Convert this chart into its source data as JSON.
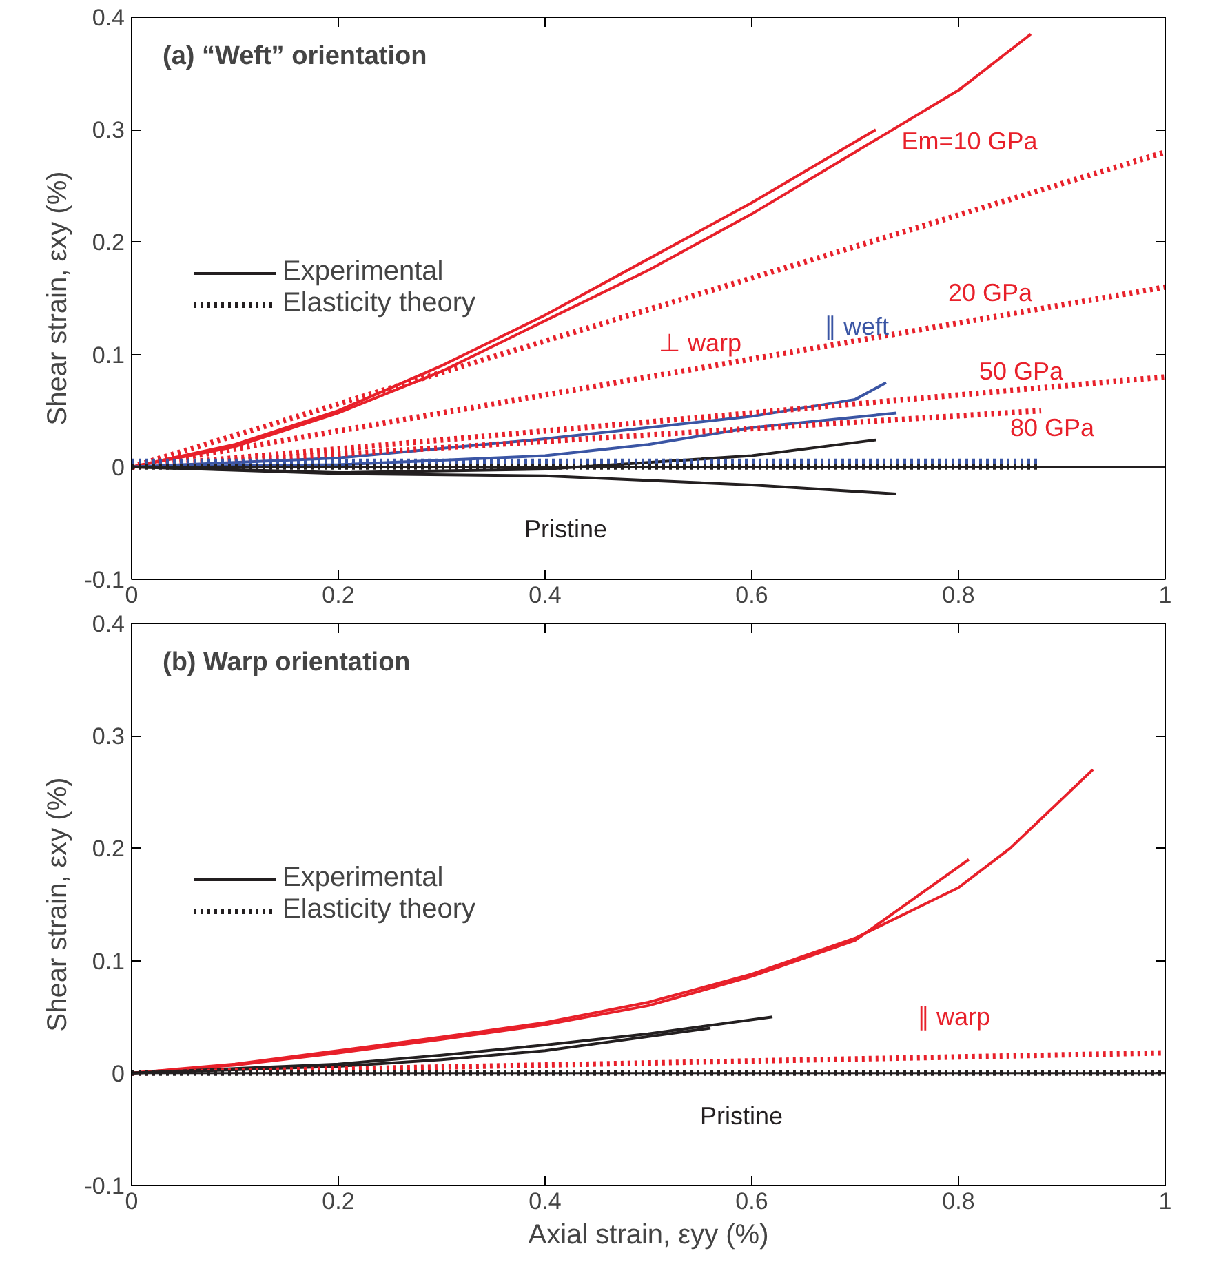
{
  "chart_data": [
    {
      "type": "line",
      "title": "(a) “Weft” orientation",
      "ylabel": "Shear strain, εxy (%)",
      "xlim": [
        0,
        1.0
      ],
      "ylim": [
        -0.1,
        0.4
      ],
      "xticks": [
        0,
        0.2,
        0.4,
        0.6,
        0.8,
        1.0
      ],
      "yticks": [
        -0.1,
        0,
        0.1,
        0.2,
        0.3,
        0.4
      ],
      "grid": false,
      "legend": "top left",
      "marker": "none",
      "series": [
        {
          "color": "#e8202a",
          "line_style": "solid",
          "x": [
            0,
            0.1,
            0.2,
            0.3,
            0.4,
            0.5,
            0.6,
            0.72
          ],
          "values": [
            0,
            0.02,
            0.05,
            0.09,
            0.135,
            0.185,
            0.235,
            0.3
          ]
        },
        {
          "color": "#e8202a",
          "line_style": "solid",
          "x": [
            0,
            0.1,
            0.2,
            0.3,
            0.4,
            0.5,
            0.6,
            0.7,
            0.8,
            0.87
          ],
          "values": [
            0,
            0.018,
            0.048,
            0.085,
            0.13,
            0.175,
            0.225,
            0.28,
            0.335,
            0.385
          ]
        },
        {
          "color": "#3a55a4",
          "line_style": "solid",
          "x": [
            0,
            0.2,
            0.4,
            0.6,
            0.7,
            0.73
          ],
          "values": [
            0,
            0.008,
            0.025,
            0.045,
            0.06,
            0.075
          ]
        },
        {
          "color": "#3a55a4",
          "line_style": "solid",
          "x": [
            0,
            0.2,
            0.4,
            0.5,
            0.6,
            0.74
          ],
          "values": [
            0,
            0.002,
            0.01,
            0.02,
            0.035,
            0.048
          ]
        },
        {
          "name": "Experimental",
          "color": "#231f20",
          "line_style": "solid",
          "x": [
            0,
            0.2,
            0.4,
            0.6,
            0.72
          ],
          "values": [
            0,
            -0.005,
            -0.002,
            0.01,
            0.024
          ]
        },
        {
          "color": "#231f20",
          "line_style": "solid",
          "x": [
            0,
            0.2,
            0.4,
            0.6,
            0.74
          ],
          "values": [
            0,
            -0.006,
            -0.008,
            -0.016,
            -0.024
          ]
        },
        {
          "color": "#e8202a",
          "line_style": "dotted",
          "x": [
            0,
            1.0
          ],
          "values": [
            0,
            0.28
          ]
        },
        {
          "color": "#e8202a",
          "line_style": "dotted",
          "x": [
            0,
            1.0
          ],
          "values": [
            0,
            0.16
          ]
        },
        {
          "color": "#e8202a",
          "line_style": "dotted",
          "x": [
            0,
            1.0
          ],
          "values": [
            0,
            0.08
          ]
        },
        {
          "color": "#e8202a",
          "line_style": "dotted",
          "x": [
            0,
            0.88
          ],
          "values": [
            0,
            0.05
          ]
        },
        {
          "color": "#3a55a4",
          "line_style": "dotted",
          "x": [
            0,
            0.88
          ],
          "values": [
            0.005,
            0.005
          ]
        },
        {
          "name": "Elasticity theory",
          "color": "#231f20",
          "line_style": "dotted",
          "x": [
            0,
            0.88
          ],
          "values": [
            0,
            0
          ]
        }
      ],
      "ref_lines": [
        {
          "axis": "y",
          "value": 0,
          "color": "#231f20",
          "line_style": "solid"
        }
      ],
      "annotations": [
        "Em=10 GPa",
        "20 GPa",
        "50 GPa",
        "80 GPa",
        "⊥ warp",
        "∥ weft",
        "Pristine"
      ]
    },
    {
      "type": "line",
      "title": "(b) Warp orientation",
      "xlabel": "Axial strain, εyy (%)",
      "ylabel": "Shear strain, εxy (%)",
      "xlim": [
        0,
        1.0
      ],
      "ylim": [
        -0.1,
        0.4
      ],
      "xticks": [
        0,
        0.2,
        0.4,
        0.6,
        0.8,
        1.0
      ],
      "yticks": [
        -0.1,
        0,
        0.1,
        0.2,
        0.3,
        0.4
      ],
      "grid": false,
      "legend": "top left",
      "marker": "none",
      "series": [
        {
          "color": "#e8202a",
          "line_style": "solid",
          "x": [
            0,
            0.1,
            0.2,
            0.3,
            0.4,
            0.5,
            0.6,
            0.7,
            0.8,
            0.85,
            0.93
          ],
          "values": [
            0,
            0.008,
            0.02,
            0.032,
            0.045,
            0.063,
            0.088,
            0.12,
            0.165,
            0.2,
            0.27
          ]
        },
        {
          "color": "#e8202a",
          "line_style": "solid",
          "x": [
            0,
            0.1,
            0.2,
            0.3,
            0.4,
            0.5,
            0.6,
            0.7,
            0.81
          ],
          "values": [
            0,
            0.007,
            0.018,
            0.03,
            0.043,
            0.06,
            0.086,
            0.118,
            0.19
          ]
        },
        {
          "name": "Experimental",
          "color": "#231f20",
          "line_style": "solid",
          "x": [
            0,
            0.2,
            0.3,
            0.4,
            0.5,
            0.62
          ],
          "values": [
            0,
            0.008,
            0.016,
            0.025,
            0.035,
            0.05
          ]
        },
        {
          "color": "#231f20",
          "line_style": "solid",
          "x": [
            0,
            0.2,
            0.3,
            0.4,
            0.56
          ],
          "values": [
            0,
            0.006,
            0.012,
            0.02,
            0.04
          ]
        },
        {
          "color": "#e8202a",
          "line_style": "dotted",
          "x": [
            0,
            1.0
          ],
          "values": [
            0,
            0.018
          ]
        },
        {
          "name": "Elasticity theory",
          "color": "#231f20",
          "line_style": "dotted",
          "x": [
            0,
            1.0
          ],
          "values": [
            0,
            0
          ]
        }
      ],
      "ref_lines": [
        {
          "axis": "y",
          "value": 0,
          "color": "#231f20",
          "line_style": "solid"
        }
      ],
      "annotations": [
        "∥ warp",
        "Pristine"
      ]
    }
  ]
}
